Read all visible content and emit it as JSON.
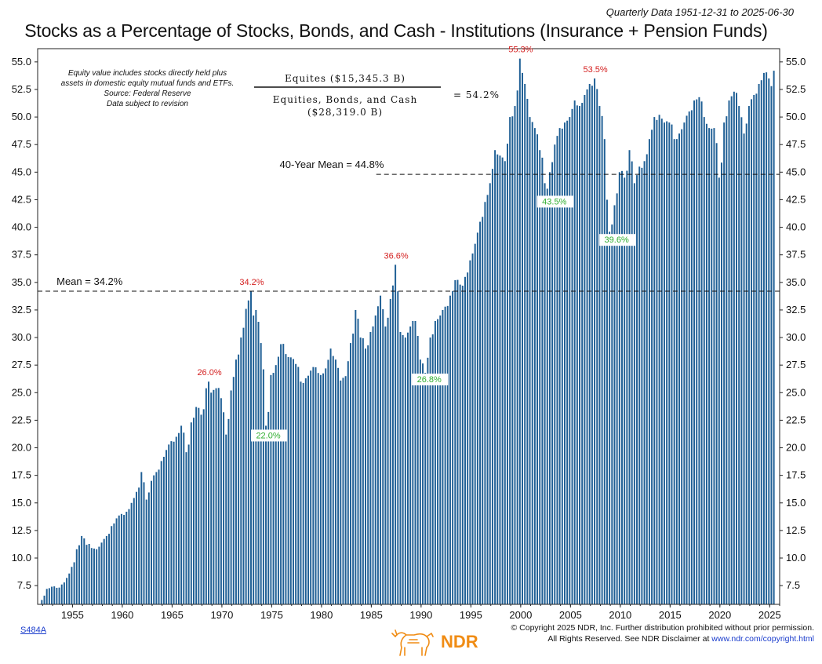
{
  "header": {
    "subtitle": "Quarterly Data 1951-12-31 to 2025-06-30",
    "title": "Stocks as a Percentage of Stocks, Bonds, and Cash - Institutions (Insurance + Pension Funds)"
  },
  "notes": {
    "line1": "Equity value includes stocks directly held plus",
    "line2": "assets in domestic equity mutual funds and ETFs.",
    "line3": "Source: Federal Reserve",
    "line4": "Data subject to revision"
  },
  "formula": {
    "numerator": "Equites ($15,345.3 B)",
    "denominator1": "Equities, Bonds, and Cash",
    "denominator2": "($28,319.0 B)",
    "result": "= 54.2%"
  },
  "footer": {
    "code": "S484A",
    "copyright1": "© Copyright 2025 NDR, Inc. Further distribution prohibited without prior permission.",
    "copyright2_prefix": "All Rights Reserved. See NDR Disclaimer at ",
    "copyright2_link": "www.ndr.com/copyright.html",
    "logo_text": "NDR"
  },
  "colors": {
    "bar": "#1f5f95",
    "high_label": "#d42020",
    "low_label": "#2fae2f",
    "logo": "#f08c14"
  },
  "chart_data": {
    "type": "bar",
    "title": "Stocks as a Percentage of Stocks, Bonds, and Cash - Institutions (Insurance + Pension Funds)",
    "frequency": "quarterly",
    "x_start": 1951.92,
    "x_step": 0.25,
    "xlim": [
      1951.5,
      2026.0
    ],
    "ylim": [
      5.8,
      56.2
    ],
    "xticks": [
      1955,
      1960,
      1965,
      1970,
      1975,
      1980,
      1985,
      1990,
      1995,
      2000,
      2005,
      2010,
      2015,
      2020,
      2025
    ],
    "yticks": [
      7.5,
      10.0,
      12.5,
      15.0,
      17.5,
      20.0,
      22.5,
      25.0,
      27.5,
      30.0,
      32.5,
      35.0,
      37.5,
      40.0,
      42.5,
      45.0,
      47.5,
      50.0,
      52.5,
      55.0
    ],
    "anchors": [
      [
        1951.9,
        6.2
      ],
      [
        1952.5,
        7.2
      ],
      [
        1953.0,
        7.4
      ],
      [
        1953.5,
        7.3
      ],
      [
        1954.0,
        7.6
      ],
      [
        1954.5,
        8.2
      ],
      [
        1955.0,
        9.2
      ],
      [
        1955.5,
        10.8
      ],
      [
        1956.0,
        12.0
      ],
      [
        1956.5,
        11.2
      ],
      [
        1957.5,
        10.8
      ],
      [
        1958.0,
        11.4
      ],
      [
        1958.5,
        12.0
      ],
      [
        1959.0,
        12.9
      ],
      [
        1959.5,
        13.6
      ],
      [
        1960.0,
        14.0
      ],
      [
        1960.5,
        14.2
      ],
      [
        1961.0,
        15.0
      ],
      [
        1961.5,
        16.0
      ],
      [
        1962.0,
        17.8
      ],
      [
        1962.5,
        15.3
      ],
      [
        1963.0,
        17.0
      ],
      [
        1963.5,
        17.8
      ],
      [
        1964.0,
        18.8
      ],
      [
        1964.5,
        19.8
      ],
      [
        1965.0,
        20.6
      ],
      [
        1965.5,
        21.0
      ],
      [
        1966.0,
        22.0
      ],
      [
        1966.5,
        19.6
      ],
      [
        1967.0,
        22.3
      ],
      [
        1967.5,
        23.7
      ],
      [
        1968.0,
        23.0
      ],
      [
        1968.5,
        25.4
      ],
      [
        1968.75,
        26.0
      ],
      [
        1969.0,
        25.0
      ],
      [
        1969.5,
        25.4
      ],
      [
        1970.0,
        24.5
      ],
      [
        1970.5,
        21.2
      ],
      [
        1971.0,
        25.2
      ],
      [
        1971.5,
        28.0
      ],
      [
        1972.0,
        30.0
      ],
      [
        1972.5,
        32.6
      ],
      [
        1973.0,
        34.2
      ],
      [
        1973.25,
        32.0
      ],
      [
        1973.5,
        32.5
      ],
      [
        1974.0,
        29.5
      ],
      [
        1974.5,
        22.0
      ],
      [
        1975.0,
        26.6
      ],
      [
        1975.5,
        27.5
      ],
      [
        1976.0,
        29.4
      ],
      [
        1976.5,
        28.5
      ],
      [
        1977.0,
        28.2
      ],
      [
        1977.5,
        27.6
      ],
      [
        1978.0,
        26.0
      ],
      [
        1978.5,
        26.3
      ],
      [
        1979.0,
        27.0
      ],
      [
        1979.5,
        27.3
      ],
      [
        1980.0,
        26.6
      ],
      [
        1980.5,
        27.2
      ],
      [
        1981.0,
        29.0
      ],
      [
        1981.5,
        28.0
      ],
      [
        1982.0,
        26.1
      ],
      [
        1982.5,
        26.5
      ],
      [
        1983.0,
        29.5
      ],
      [
        1983.5,
        32.5
      ],
      [
        1984.0,
        30.0
      ],
      [
        1984.5,
        29.0
      ],
      [
        1985.0,
        30.5
      ],
      [
        1985.5,
        32.0
      ],
      [
        1986.0,
        33.8
      ],
      [
        1986.5,
        31.0
      ],
      [
        1987.0,
        33.5
      ],
      [
        1987.5,
        36.6
      ],
      [
        1988.0,
        30.5
      ],
      [
        1988.5,
        30.0
      ],
      [
        1989.0,
        31.0
      ],
      [
        1989.5,
        31.5
      ],
      [
        1990.0,
        28.0
      ],
      [
        1990.5,
        26.8
      ],
      [
        1991.0,
        30.0
      ],
      [
        1991.5,
        31.5
      ],
      [
        1992.0,
        32.0
      ],
      [
        1992.5,
        32.8
      ],
      [
        1993.0,
        33.8
      ],
      [
        1993.5,
        35.2
      ],
      [
        1994.0,
        34.8
      ],
      [
        1994.5,
        35.5
      ],
      [
        1995.0,
        37.0
      ],
      [
        1995.5,
        38.5
      ],
      [
        1996.0,
        40.5
      ],
      [
        1996.5,
        42.3
      ],
      [
        1997.0,
        44.0
      ],
      [
        1997.5,
        47.0
      ],
      [
        1998.0,
        46.5
      ],
      [
        1998.5,
        46.0
      ],
      [
        1999.0,
        50.0
      ],
      [
        1999.5,
        51.0
      ],
      [
        2000.0,
        55.3
      ],
      [
        2000.25,
        54.0
      ],
      [
        2000.5,
        53.0
      ],
      [
        2001.0,
        50.0
      ],
      [
        2001.5,
        49.0
      ],
      [
        2002.0,
        47.0
      ],
      [
        2002.5,
        44.0
      ],
      [
        2002.75,
        43.5
      ],
      [
        2003.0,
        45.0
      ],
      [
        2003.5,
        47.5
      ],
      [
        2004.0,
        49.0
      ],
      [
        2004.5,
        49.5
      ],
      [
        2005.0,
        50.0
      ],
      [
        2005.5,
        51.5
      ],
      [
        2006.0,
        51.0
      ],
      [
        2006.5,
        52.0
      ],
      [
        2007.0,
        53.0
      ],
      [
        2007.5,
        53.5
      ],
      [
        2008.0,
        51.0
      ],
      [
        2008.5,
        48.0
      ],
      [
        2008.75,
        42.5
      ],
      [
        2009.0,
        39.6
      ],
      [
        2009.5,
        42.0
      ],
      [
        2010.0,
        45.0
      ],
      [
        2010.5,
        44.5
      ],
      [
        2011.0,
        47.0
      ],
      [
        2011.5,
        44.0
      ],
      [
        2012.0,
        45.5
      ],
      [
        2012.5,
        46.0
      ],
      [
        2013.0,
        48.0
      ],
      [
        2013.5,
        50.0
      ],
      [
        2014.0,
        50.2
      ],
      [
        2014.5,
        49.5
      ],
      [
        2015.0,
        49.5
      ],
      [
        2015.5,
        48.0
      ],
      [
        2016.0,
        48.5
      ],
      [
        2016.5,
        49.5
      ],
      [
        2017.0,
        50.5
      ],
      [
        2017.5,
        51.5
      ],
      [
        2018.0,
        51.8
      ],
      [
        2018.5,
        50.0
      ],
      [
        2019.0,
        49.0
      ],
      [
        2019.5,
        49.0
      ],
      [
        2020.0,
        44.5
      ],
      [
        2020.5,
        49.5
      ],
      [
        2021.0,
        51.5
      ],
      [
        2021.5,
        52.3
      ],
      [
        2022.0,
        51.0
      ],
      [
        2022.5,
        48.5
      ],
      [
        2023.0,
        51.0
      ],
      [
        2023.5,
        52.0
      ],
      [
        2024.0,
        53.0
      ],
      [
        2024.5,
        54.0
      ],
      [
        2025.0,
        53.5
      ],
      [
        2025.25,
        52.8
      ],
      [
        2025.5,
        54.2
      ]
    ],
    "reference_lines": [
      {
        "label": "Mean = 34.2%",
        "value": 34.2,
        "from": 1951.5
      },
      {
        "label": "40-Year Mean = 44.8%",
        "value": 44.8,
        "from": 1985.5
      }
    ],
    "annotations": [
      {
        "text": "26.0%",
        "kind": "high",
        "x": 1968.75,
        "y": 26.0
      },
      {
        "text": "34.2%",
        "kind": "high",
        "x": 1973.0,
        "y": 34.2
      },
      {
        "text": "36.6%",
        "kind": "high",
        "x": 1987.5,
        "y": 36.6
      },
      {
        "text": "55.3%",
        "kind": "high",
        "x": 2000.0,
        "y": 55.3
      },
      {
        "text": "53.5%",
        "kind": "high",
        "x": 2007.5,
        "y": 53.5
      },
      {
        "text": "22.0%",
        "kind": "low",
        "x": 1974.5,
        "y": 22.0
      },
      {
        "text": "26.8%",
        "kind": "low",
        "x": 1990.5,
        "y": 26.8
      },
      {
        "text": "43.5%",
        "kind": "low",
        "x": 2002.75,
        "y": 43.5
      },
      {
        "text": "39.6%",
        "kind": "low",
        "x": 2009.0,
        "y": 39.6
      }
    ],
    "last_value": "54.2%"
  }
}
